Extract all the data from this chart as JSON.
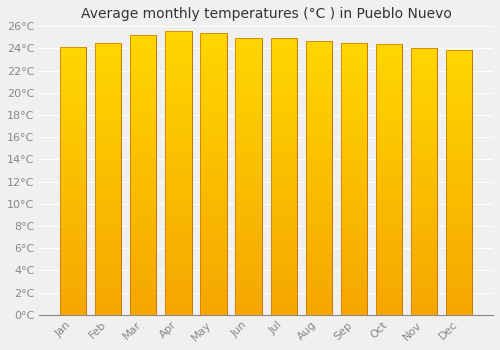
{
  "title": "Average monthly temperatures (°C ) in Pueblo Nuevo",
  "months": [
    "Jan",
    "Feb",
    "Mar",
    "Apr",
    "May",
    "Jun",
    "Jul",
    "Aug",
    "Sep",
    "Oct",
    "Nov",
    "Dec"
  ],
  "values": [
    24.1,
    24.5,
    25.2,
    25.6,
    25.4,
    24.9,
    24.9,
    24.7,
    24.5,
    24.4,
    24.0,
    23.9
  ],
  "ylim": [
    0,
    26
  ],
  "yticks": [
    0,
    2,
    4,
    6,
    8,
    10,
    12,
    14,
    16,
    18,
    20,
    22,
    24,
    26
  ],
  "bar_color": "#FFA500",
  "bar_edge_color": "#CC7000",
  "background_color": "#f0f0f0",
  "grid_color": "#ffffff",
  "title_fontsize": 10,
  "tick_fontsize": 8,
  "tick_color": "#888888",
  "title_color": "#333333"
}
